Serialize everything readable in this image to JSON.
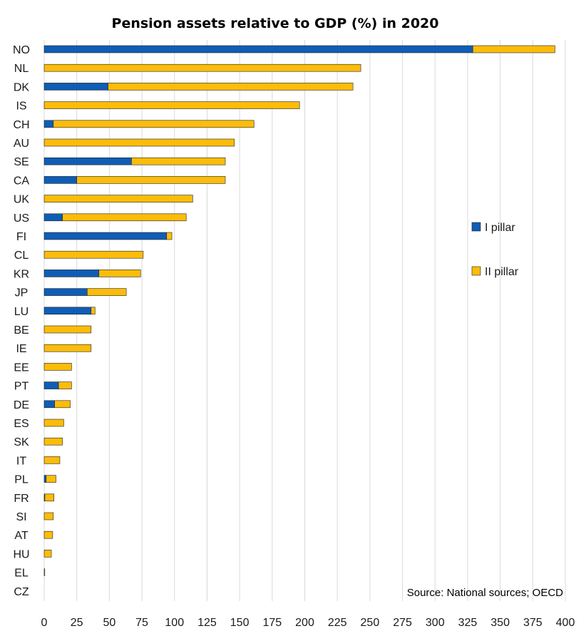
{
  "chart_data": {
    "type": "bar",
    "orientation": "horizontal",
    "stacked": true,
    "title": "Pension assets relative to GDP (%) in 2020",
    "categories": [
      "NO",
      "NL",
      "DK",
      "IS",
      "CH",
      "AU",
      "SE",
      "CA",
      "UK",
      "US",
      "FI",
      "CL",
      "KR",
      "JP",
      "LU",
      "BE",
      "IE",
      "EE",
      "PT",
      "DE",
      "ES",
      "SK",
      "IT",
      "PL",
      "FR",
      "SI",
      "AT",
      "HU",
      "EL",
      "CZ"
    ],
    "series": [
      {
        "name": "I pillar",
        "color": "#0f5db5",
        "values": [
          329,
          0,
          49,
          0,
          7,
          0,
          67,
          25,
          0,
          14,
          94,
          0,
          42,
          33,
          36,
          0,
          0,
          0,
          11,
          8,
          0,
          0,
          0,
          1.5,
          0.5,
          0,
          0,
          0,
          0,
          0
        ]
      },
      {
        "name": "II pillar",
        "color": "#fbbc0a",
        "values": [
          63,
          243,
          188,
          196,
          154,
          146,
          72,
          114,
          114,
          95,
          4,
          76,
          32,
          30,
          3,
          36,
          36,
          21,
          10,
          12,
          15,
          14,
          12,
          7.5,
          7,
          7,
          6.5,
          5.5,
          0.4,
          0
        ]
      }
    ],
    "xlim": [
      0,
      400
    ],
    "xticks": [
      "0",
      "25",
      "50",
      "75",
      "100",
      "125",
      "150",
      "175",
      "200",
      "225",
      "250",
      "275",
      "300",
      "325",
      "350",
      "375",
      "400"
    ],
    "grid": "vertical",
    "legend_placement": "right",
    "annotation": "Source: National sources; OECD"
  }
}
